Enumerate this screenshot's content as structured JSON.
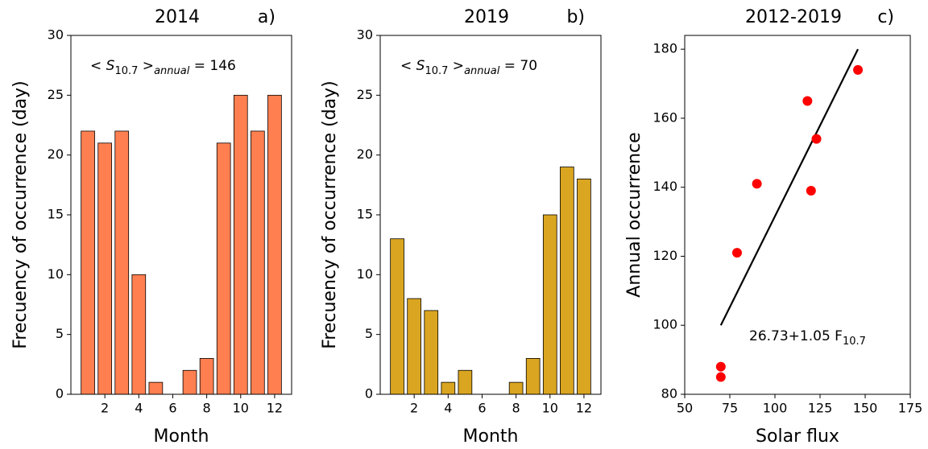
{
  "chart_data": [
    {
      "type": "bar",
      "title": "2014",
      "panel_label": "a)",
      "xlabel": "Month",
      "ylabel": "Frecuency of occurrence (day)",
      "annotation": [
        "< ",
        "S",
        "10.7",
        " >",
        "annual",
        " = 146"
      ],
      "x": [
        1,
        2,
        3,
        4,
        5,
        6,
        7,
        8,
        9,
        10,
        11,
        12
      ],
      "values": [
        22,
        21,
        22,
        10,
        1,
        0,
        2,
        3,
        21,
        25,
        22,
        25
      ],
      "color": "#ff7f50",
      "xlim": [
        0,
        13
      ],
      "xticks": [
        2,
        4,
        6,
        8,
        10,
        12
      ],
      "ylim": [
        0,
        30
      ],
      "yticks": [
        0,
        5,
        10,
        15,
        20,
        25,
        30
      ]
    },
    {
      "type": "bar",
      "title": "2019",
      "panel_label": "b)",
      "xlabel": "Month",
      "ylabel": "Frecuency of occurrence (day)",
      "annotation": [
        "< ",
        "S",
        "10.7",
        " >",
        "annual",
        " = 70"
      ],
      "x": [
        1,
        2,
        3,
        4,
        5,
        6,
        7,
        8,
        9,
        10,
        11,
        12
      ],
      "values": [
        13,
        8,
        7,
        1,
        2,
        0,
        0,
        1,
        3,
        15,
        19,
        18
      ],
      "color": "#daa520",
      "xlim": [
        0,
        13
      ],
      "xticks": [
        2,
        4,
        6,
        8,
        10,
        12
      ],
      "ylim": [
        0,
        30
      ],
      "yticks": [
        0,
        5,
        10,
        15,
        20,
        25,
        30
      ]
    },
    {
      "type": "scatter",
      "title": "2012-2019",
      "panel_label": "c)",
      "xlabel": "Solar flux",
      "ylabel": "Annual occurrence",
      "annotation": [
        "26.73+1.05 F",
        "10.7"
      ],
      "x": [
        70,
        70,
        79,
        90,
        118,
        120,
        123,
        146
      ],
      "y": [
        88,
        85,
        121,
        141,
        165,
        139,
        154,
        174
      ],
      "color": "#ff0000",
      "line": {
        "x": [
          70,
          146
        ],
        "y": [
          100,
          180
        ],
        "color": "#000000"
      },
      "xlim": [
        50,
        175
      ],
      "xticks": [
        50,
        75,
        100,
        125,
        150,
        175
      ],
      "ylim": [
        80,
        184
      ],
      "yticks": [
        80,
        100,
        120,
        140,
        160,
        180
      ]
    }
  ]
}
